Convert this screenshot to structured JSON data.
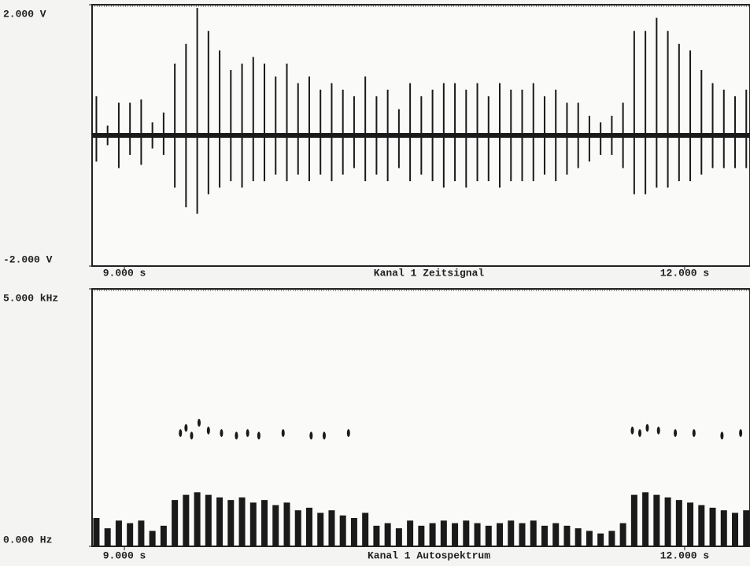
{
  "chart_data": [
    {
      "type": "spikes",
      "title": "Kanal 1 Zeitsignal",
      "xlim": [
        8.827,
        12.35
      ],
      "ylim": [
        -2,
        2
      ],
      "xticks": [
        {
          "value": 9,
          "label": "9.000  s"
        },
        {
          "value": 12,
          "label": "12.000  s"
        }
      ],
      "yticks": [
        {
          "value": 2,
          "label": "2.000  V"
        },
        {
          "value": -2,
          "label": "-2.000  V"
        }
      ],
      "color": "#1a1a1a",
      "x": [
        8.85,
        8.91,
        8.97,
        9.03,
        9.09,
        9.15,
        9.21,
        9.27,
        9.33,
        9.39,
        9.45,
        9.51,
        9.57,
        9.63,
        9.69,
        9.75,
        9.81,
        9.87,
        9.93,
        9.99,
        10.05,
        10.11,
        10.17,
        10.23,
        10.29,
        10.35,
        10.41,
        10.47,
        10.53,
        10.59,
        10.65,
        10.71,
        10.77,
        10.83,
        10.89,
        10.95,
        11.01,
        11.07,
        11.13,
        11.19,
        11.25,
        11.31,
        11.37,
        11.43,
        11.49,
        11.55,
        11.61,
        11.67,
        11.73,
        11.79,
        11.85,
        11.91,
        11.97,
        12.03,
        12.09,
        12.15,
        12.21,
        12.27,
        12.33
      ],
      "series": [
        {
          "values": [
            0.6,
            0.15,
            0.5,
            0.5,
            0.55,
            0.2,
            0.35,
            1.1,
            1.4,
            1.95,
            1.6,
            1.3,
            1.0,
            1.1,
            1.2,
            1.1,
            0.9,
            1.1,
            0.8,
            0.9,
            0.7,
            0.8,
            0.7,
            0.6,
            0.9,
            0.6,
            0.7,
            0.4,
            0.8,
            0.6,
            0.7,
            0.8,
            0.8,
            0.7,
            0.8,
            0.6,
            0.8,
            0.7,
            0.7,
            0.8,
            0.6,
            0.7,
            0.5,
            0.5,
            0.3,
            0.2,
            0.3,
            0.5,
            1.6,
            1.6,
            1.8,
            1.6,
            1.4,
            1.3,
            1.0,
            0.8,
            0.7,
            0.6,
            0.7
          ]
        },
        {
          "values": [
            -0.4,
            -0.15,
            -0.5,
            -0.3,
            -0.45,
            -0.2,
            -0.3,
            -0.8,
            -1.1,
            -1.2,
            -0.9,
            -0.8,
            -0.7,
            -0.8,
            -0.7,
            -0.7,
            -0.6,
            -0.7,
            -0.6,
            -0.7,
            -0.6,
            -0.7,
            -0.6,
            -0.5,
            -0.7,
            -0.6,
            -0.7,
            -0.5,
            -0.7,
            -0.6,
            -0.7,
            -0.8,
            -0.7,
            -0.8,
            -0.7,
            -0.7,
            -0.8,
            -0.7,
            -0.7,
            -0.7,
            -0.6,
            -0.7,
            -0.6,
            -0.5,
            -0.4,
            -0.3,
            -0.3,
            -0.5,
            -0.9,
            -0.9,
            -0.8,
            -0.8,
            -0.7,
            -0.7,
            -0.6,
            -0.5,
            -0.5,
            -0.5,
            -0.5
          ]
        }
      ]
    },
    {
      "type": "spectrogram",
      "title": "Kanal 1 Autospektrum",
      "xlim": [
        8.827,
        12.35
      ],
      "ylim": [
        0,
        5000
      ],
      "xticks": [
        {
          "value": 9,
          "label": "9.000  s"
        },
        {
          "value": 12,
          "label": "12.000  s"
        }
      ],
      "yticks": [
        {
          "value": 5000,
          "label": "5.000 kHz"
        },
        {
          "value": 0,
          "label": "0.000  Hz"
        }
      ],
      "color": "#1a1a1a",
      "x": [
        8.85,
        8.91,
        8.97,
        9.03,
        9.09,
        9.15,
        9.21,
        9.27,
        9.33,
        9.39,
        9.45,
        9.51,
        9.57,
        9.63,
        9.69,
        9.75,
        9.81,
        9.87,
        9.93,
        9.99,
        10.05,
        10.11,
        10.17,
        10.23,
        10.29,
        10.35,
        10.41,
        10.47,
        10.53,
        10.59,
        10.65,
        10.71,
        10.77,
        10.83,
        10.89,
        10.95,
        11.01,
        11.07,
        11.13,
        11.19,
        11.25,
        11.31,
        11.37,
        11.43,
        11.49,
        11.55,
        11.61,
        11.67,
        11.73,
        11.79,
        11.85,
        11.91,
        11.97,
        12.03,
        12.09,
        12.15,
        12.21,
        12.27,
        12.33
      ],
      "values": [
        550,
        350,
        500,
        450,
        500,
        300,
        400,
        900,
        1000,
        1050,
        1000,
        950,
        900,
        950,
        850,
        900,
        800,
        850,
        700,
        750,
        650,
        700,
        600,
        550,
        650,
        400,
        450,
        350,
        500,
        400,
        450,
        500,
        450,
        500,
        450,
        400,
        450,
        500,
        450,
        500,
        400,
        450,
        400,
        350,
        300,
        250,
        300,
        450,
        1000,
        1050,
        1000,
        950,
        900,
        850,
        800,
        750,
        700,
        650,
        700
      ],
      "blob_x": [
        9.3,
        9.33,
        9.36,
        9.4,
        9.45,
        9.52,
        9.6,
        9.66,
        9.72,
        9.85,
        10.0,
        10.07,
        10.2,
        11.72,
        11.76,
        11.8,
        11.86,
        11.95,
        12.05,
        12.2,
        12.3
      ],
      "blob_y": [
        2200,
        2300,
        2150,
        2400,
        2250,
        2200,
        2150,
        2200,
        2150,
        2200,
        2150,
        2150,
        2200,
        2250,
        2200,
        2300,
        2250,
        2200,
        2200,
        2150,
        2200
      ]
    }
  ]
}
